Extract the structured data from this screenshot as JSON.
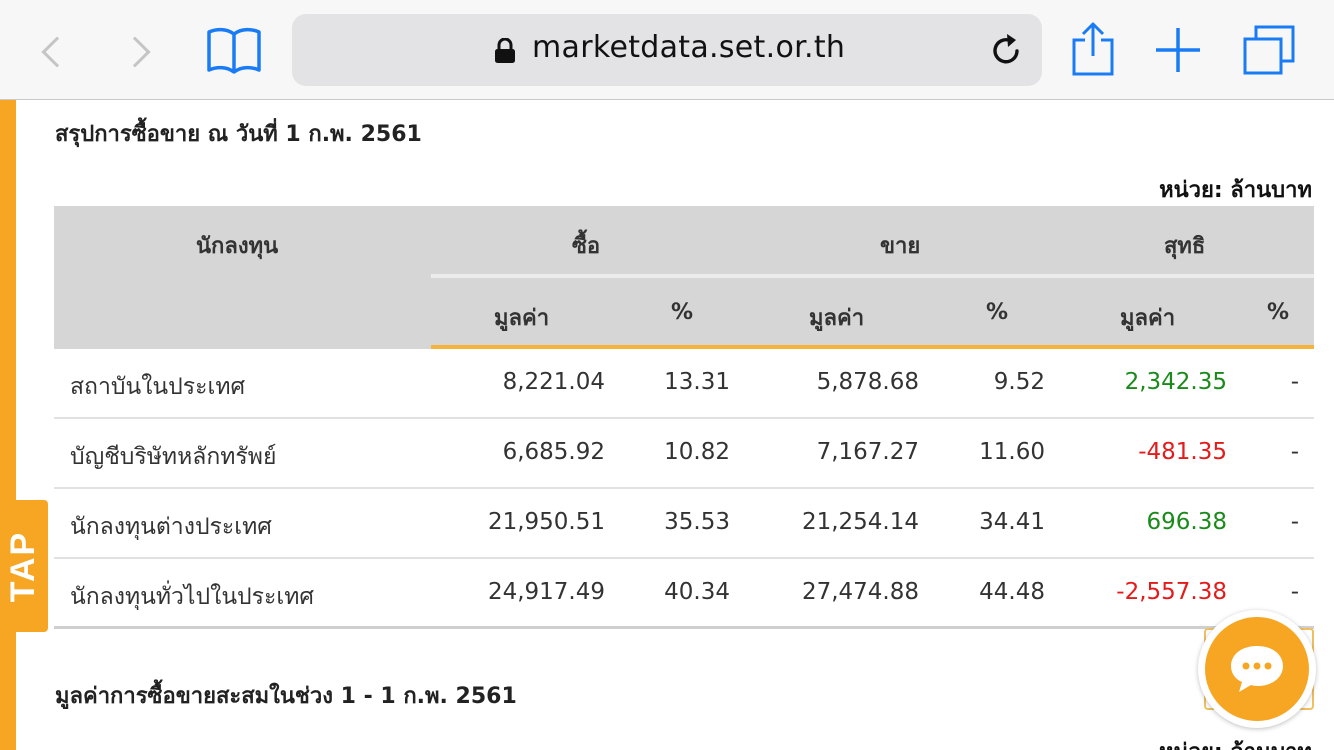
{
  "browser": {
    "url": "marketdata.set.or.th",
    "icons": [
      "back-icon",
      "forward-icon",
      "bookmarks-icon",
      "lock-icon",
      "reload-icon",
      "share-icon",
      "new-tab-icon",
      "tabs-icon"
    ]
  },
  "side_tab": {
    "label": "TAP"
  },
  "summary": {
    "title": "สรุปการซื้อขาย ณ วันที่ 1 ก.พ. 2561",
    "unit": "หน่วย: ล้านบาท",
    "headers": {
      "investor": "นักลงทุน",
      "buy": "ซื้อ",
      "sell": "ขาย",
      "net": "สุทธิ",
      "value": "มูลค่า",
      "percent": "%"
    },
    "rows": [
      {
        "name": "สถาบันในประเทศ",
        "buy_value": "8,221.04",
        "buy_pct": "13.31",
        "sell_value": "5,878.68",
        "sell_pct": "9.52",
        "net_value": "2,342.35",
        "net_pct": "-"
      },
      {
        "name": "บัญชีบริษัทหลักทรัพย์",
        "buy_value": "6,685.92",
        "buy_pct": "10.82",
        "sell_value": "7,167.27",
        "sell_pct": "11.60",
        "net_value": "-481.35",
        "net_pct": "-"
      },
      {
        "name": "นักลงทุนต่างประเทศ",
        "buy_value": "21,950.51",
        "buy_pct": "35.53",
        "sell_value": "21,254.14",
        "sell_pct": "34.41",
        "net_value": "696.38",
        "net_pct": "-"
      },
      {
        "name": "นักลงทุนทั่วไปในประเทศ",
        "buy_value": "24,917.49",
        "buy_pct": "40.34",
        "sell_value": "27,474.88",
        "sell_pct": "44.48",
        "net_value": "-2,557.38",
        "net_pct": "-"
      }
    ]
  },
  "cumulative": {
    "title": "มูลค่าการซื้อขายสะสมในช่วง 1 - 1 ก.พ. 2561",
    "unit": "หน่วย: ล้านบาท"
  },
  "colors": {
    "accent": "#f6a623",
    "positive": "#1a8a1a",
    "negative": "#e31b1b",
    "header_bg": "#d6d6d6",
    "ios_blue": "#1a7cf5"
  }
}
